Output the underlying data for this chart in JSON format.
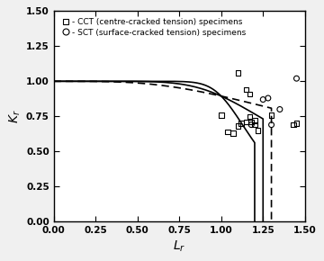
{
  "title": "",
  "xlabel": "L_r",
  "ylabel": "K_r",
  "xlim": [
    0.0,
    1.5
  ],
  "ylim": [
    0.0,
    1.5
  ],
  "xticks": [
    0.0,
    0.25,
    0.5,
    0.75,
    1.0,
    1.25,
    1.5
  ],
  "yticks": [
    0.0,
    0.25,
    0.5,
    0.75,
    1.0,
    1.25,
    1.5
  ],
  "curve1_Lrmax": 1.2,
  "curve1_n": 10,
  "curve2_Lrmax": 1.25,
  "curve2_n": 5,
  "curve3_Lrmax": 1.3,
  "curve3_n": 3,
  "CCT_points": [
    [
      1.0,
      0.76
    ],
    [
      1.04,
      0.64
    ],
    [
      1.07,
      0.63
    ],
    [
      1.1,
      0.68
    ],
    [
      1.12,
      0.7
    ],
    [
      1.15,
      0.71
    ],
    [
      1.17,
      0.75
    ],
    [
      1.18,
      0.71
    ],
    [
      1.2,
      0.72
    ],
    [
      1.2,
      0.69
    ],
    [
      1.22,
      0.65
    ],
    [
      1.15,
      0.94
    ],
    [
      1.17,
      0.91
    ],
    [
      1.1,
      1.06
    ],
    [
      1.43,
      0.69
    ],
    [
      1.45,
      0.7
    ],
    [
      1.3,
      0.76
    ]
  ],
  "SCT_points": [
    [
      1.18,
      0.69
    ],
    [
      1.25,
      0.87
    ],
    [
      1.28,
      0.88
    ],
    [
      1.3,
      0.69
    ],
    [
      1.45,
      1.02
    ],
    [
      1.35,
      0.8
    ]
  ],
  "line_color": "#000000",
  "bg_color": "#f0f0f0",
  "plot_bg_color": "#ffffff"
}
